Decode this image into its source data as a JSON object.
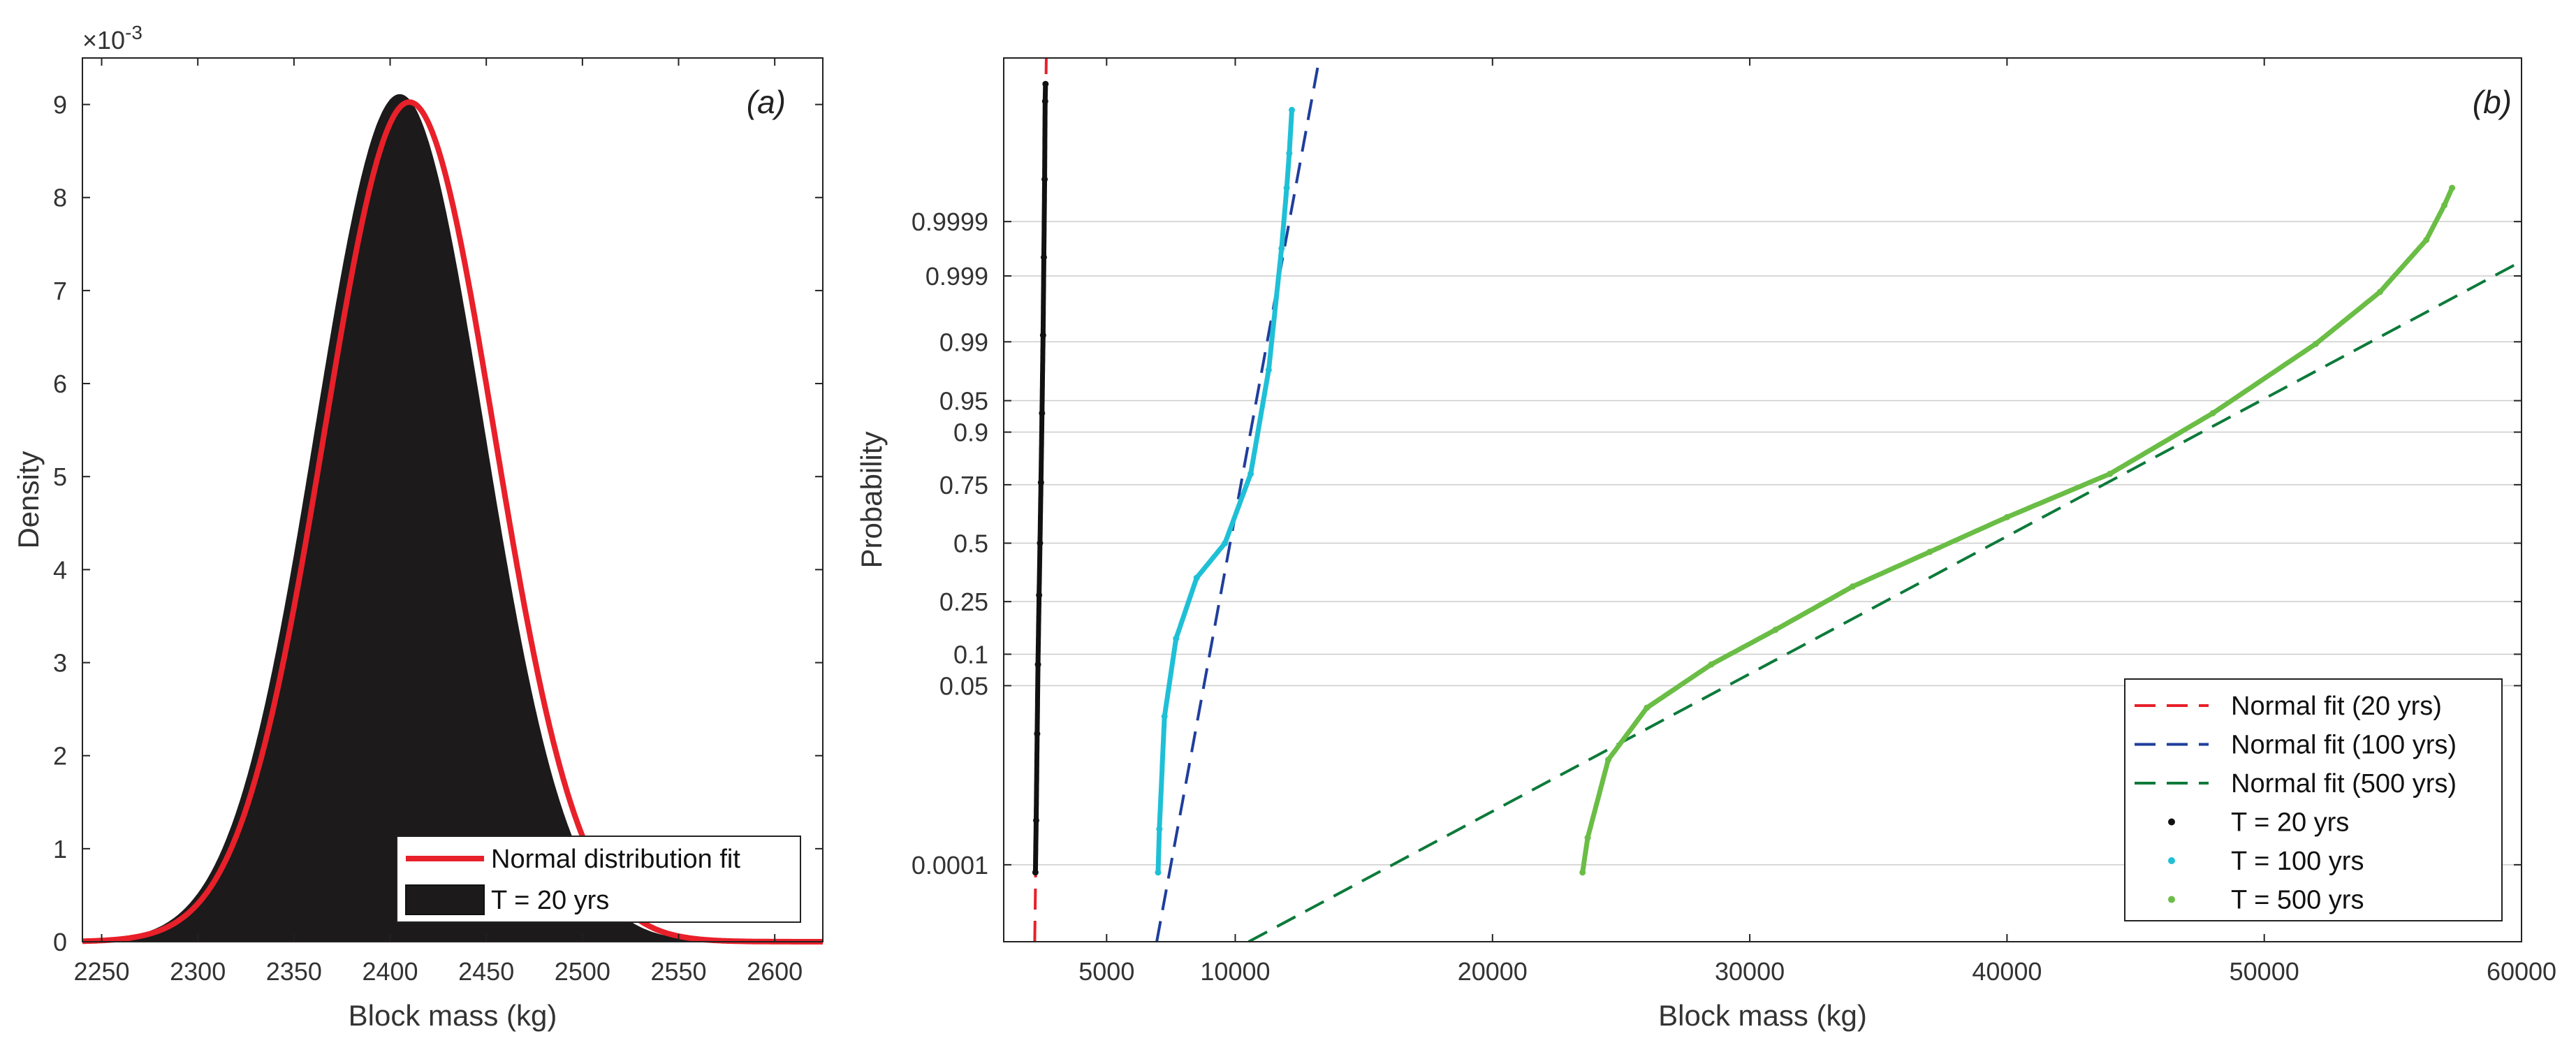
{
  "chart_data": [
    {
      "type": "area",
      "panel_label": "(a)",
      "xlabel": "Block mass (kg)",
      "ylabel": "Density",
      "exponent_label": "×10",
      "exponent_power": "-3",
      "xlim": [
        2240,
        2625
      ],
      "ylim": [
        0,
        9.5
      ],
      "xticks": [
        2250,
        2300,
        2350,
        2400,
        2450,
        2500,
        2550,
        2600
      ],
      "yticks": [
        0,
        1,
        2,
        3,
        4,
        5,
        6,
        7,
        8,
        9
      ],
      "legend_position": "bottom-right",
      "series": [
        {
          "name": "Normal distribution fit",
          "kind": "line",
          "color": "#e8202a",
          "mean": 2410,
          "sd": 44.2
        },
        {
          "name": "T = 20 yrs",
          "kind": "histogram",
          "color": "#1c1a1a",
          "mean": 2405,
          "sd": 43.8
        }
      ]
    },
    {
      "type": "scatter",
      "panel_label": "(b)",
      "xlabel": "Block mass (kg)",
      "ylabel": "Probability",
      "xlim": [
        1000,
        60000
      ],
      "xticks": [
        5000,
        10000,
        20000,
        30000,
        40000,
        50000,
        60000
      ],
      "xtick_labels": [
        "5000",
        "10000",
        "20000",
        "30000",
        "40000",
        "50000",
        "60000"
      ],
      "yscale": "normal-probability",
      "zlim": [
        -4.6,
        5.6
      ],
      "yticks": [
        0.0001,
        0.05,
        0.1,
        0.25,
        0.5,
        0.75,
        0.9,
        0.95,
        0.99,
        0.999,
        0.9999
      ],
      "ytick_labels": [
        "0.0001",
        "0.05",
        "0.1",
        "0.25",
        "0.5",
        "0.75",
        "0.9",
        "0.95",
        "0.99",
        "0.999",
        "0.9999"
      ],
      "legend_position": "bottom-right",
      "series": [
        {
          "name": "Normal fit (20 yrs)",
          "kind": "dashed",
          "color": "#e8202a",
          "mean": 2408,
          "sd": 44
        },
        {
          "name": "Normal fit (100 yrs)",
          "kind": "dashed",
          "color": "#1f3e9c",
          "mean": 9800,
          "sd": 620
        },
        {
          "name": "Normal fit (500 yrs)",
          "kind": "dashed",
          "color": "#0d7a3a",
          "mean": 39500,
          "sd": 6300
        },
        {
          "name": "T = 20 yrs",
          "kind": "dots",
          "color": "#111111",
          "points": [
            [
              2232,
              -3.8
            ],
            [
              2262,
              -3.2
            ],
            [
              2300,
              -2.2
            ],
            [
              2332,
              -1.4
            ],
            [
              2375,
              -0.6
            ],
            [
              2410,
              0.0
            ],
            [
              2448,
              0.7
            ],
            [
              2488,
              1.5
            ],
            [
              2530,
              2.4
            ],
            [
              2560,
              3.3
            ],
            [
              2590,
              4.2
            ],
            [
              2610,
              5.1
            ],
            [
              2625,
              5.3
            ]
          ]
        },
        {
          "name": "T = 100 yrs",
          "kind": "dots",
          "color": "#1fc0d6",
          "points": [
            [
              7000,
              -3.8
            ],
            [
              7050,
              -3.3
            ],
            [
              7250,
              -2.0
            ],
            [
              7700,
              -1.1
            ],
            [
              8500,
              -0.4
            ],
            [
              9600,
              0.0
            ],
            [
              10600,
              0.8
            ],
            [
              11300,
              2.0
            ],
            [
              11800,
              3.4
            ],
            [
              12000,
              4.1
            ],
            [
              12100,
              4.5
            ],
            [
              12200,
              5.0
            ]
          ]
        },
        {
          "name": "T = 500 yrs",
          "kind": "dots",
          "color": "#6abd45",
          "points": [
            [
              23500,
              -3.8
            ],
            [
              23700,
              -3.4
            ],
            [
              24500,
              -2.5
            ],
            [
              26000,
              -1.9
            ],
            [
              28500,
              -1.4
            ],
            [
              31000,
              -1.0
            ],
            [
              34000,
              -0.5
            ],
            [
              37000,
              -0.1
            ],
            [
              40000,
              0.3
            ],
            [
              44000,
              0.8
            ],
            [
              48000,
              1.5
            ],
            [
              52000,
              2.3
            ],
            [
              54500,
              2.9
            ],
            [
              56300,
              3.5
            ],
            [
              57000,
              3.9
            ],
            [
              57300,
              4.1
            ]
          ]
        }
      ]
    }
  ]
}
